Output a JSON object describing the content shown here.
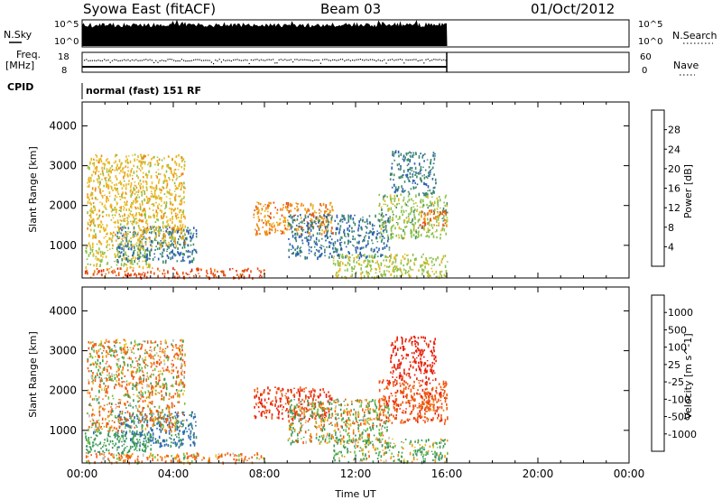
{
  "header": {
    "title": "Syowa East (fitACF)",
    "beam": "Beam 03",
    "date": "01/Oct/2012"
  },
  "left_labels": {
    "nsky": "N.Sky",
    "freq_line1": "Freq.",
    "freq_line2": "[MHz]",
    "cpid": "CPID",
    "nsky_top": "10^5",
    "nsky_bottom": "10^0",
    "freq_top": "18",
    "freq_bottom": "8"
  },
  "right_labels": {
    "nsearch": "N.Search",
    "nave": "Nave",
    "nsearch_top": "10^5",
    "nsearch_bottom": "10^0",
    "nave_top": "60",
    "nave_bottom": "0"
  },
  "cpid_text": "normal (fast) 151 RF",
  "colors": {
    "power": [
      "#1a1aff",
      "#2b5fb0",
      "#3f8a6a",
      "#8cc14a",
      "#e8b820",
      "#f08a10",
      "#e85010",
      "#e02010"
    ],
    "velocity": [
      "#e8200c",
      "#f05a10",
      "#f59010",
      "#e8c020",
      "#c0c0c0",
      "#70c040",
      "#3a9a58",
      "#2e6ab0",
      "#1a2fd0"
    ]
  },
  "chart_data": [
    {
      "type": "heatmap",
      "name": "power-panel",
      "xlabel": "",
      "ylabel": "Slant Range [km]",
      "xlim": [
        0,
        24
      ],
      "ylim": [
        180,
        4600
      ],
      "yticks": [
        "1000",
        "2000",
        "3000",
        "4000"
      ],
      "colorbar_label": "Power [dB]",
      "colorbar_ticks": [
        "4",
        "8",
        "12",
        "16",
        "20",
        "24",
        "28"
      ],
      "clim": [
        0,
        32
      ],
      "regions": [
        {
          "t": [
            0.1,
            8.0
          ],
          "r": [
            200,
            450
          ],
          "v": 26
        },
        {
          "t": [
            0.1,
            3.0
          ],
          "r": [
            450,
            1000
          ],
          "v": 16
        },
        {
          "t": [
            1.5,
            5.0
          ],
          "r": [
            600,
            1500
          ],
          "v": 8
        },
        {
          "t": [
            0.2,
            4.5
          ],
          "r": [
            1000,
            3300
          ],
          "v": 18
        },
        {
          "t": [
            7.5,
            11.0
          ],
          "r": [
            1300,
            2100
          ],
          "v": 22
        },
        {
          "t": [
            9.0,
            13.5
          ],
          "r": [
            700,
            1800
          ],
          "v": 8
        },
        {
          "t": [
            13.0,
            16.0
          ],
          "r": [
            1200,
            2300
          ],
          "v": 14
        },
        {
          "t": [
            14.8,
            16.0
          ],
          "r": [
            1500,
            1900
          ],
          "v": 24
        },
        {
          "t": [
            13.5,
            15.5
          ],
          "r": [
            2300,
            3400
          ],
          "v": 9
        },
        {
          "t": [
            11.0,
            16.0
          ],
          "r": [
            220,
            800
          ],
          "v": 15
        }
      ]
    },
    {
      "type": "heatmap",
      "name": "velocity-panel",
      "xlabel": "Time UT",
      "ylabel": "Slant Range [km]",
      "xlim": [
        0,
        24
      ],
      "ylim": [
        180,
        4600
      ],
      "xticks": [
        "00:00",
        "04:00",
        "08:00",
        "12:00",
        "16:00",
        "20:00",
        "00:00"
      ],
      "yticks": [
        "1000",
        "2000",
        "3000",
        "4000"
      ],
      "colorbar_label": "Velocity [m s^-1]",
      "colorbar_ticks": [
        "1000",
        "500",
        "100",
        "25",
        "-25",
        "-100",
        "-500",
        "-1000"
      ],
      "clim": [
        -1200,
        1200
      ],
      "regions": [
        {
          "t": [
            0.1,
            8.0
          ],
          "r": [
            200,
            450
          ],
          "v": -120
        },
        {
          "t": [
            0.1,
            3.0
          ],
          "r": [
            450,
            1000
          ],
          "v": 300
        },
        {
          "t": [
            1.5,
            5.0
          ],
          "r": [
            600,
            1500
          ],
          "v": 600
        },
        {
          "t": [
            0.2,
            4.5
          ],
          "r": [
            1000,
            3300
          ],
          "v": -60
        },
        {
          "t": [
            7.5,
            11.0
          ],
          "r": [
            1300,
            2100
          ],
          "v": -550
        },
        {
          "t": [
            9.0,
            13.5
          ],
          "r": [
            700,
            1800
          ],
          "v": 40
        },
        {
          "t": [
            13.0,
            16.0
          ],
          "r": [
            1200,
            2300
          ],
          "v": -400
        },
        {
          "t": [
            14.8,
            16.0
          ],
          "r": [
            1500,
            1900
          ],
          "v": -300
        },
        {
          "t": [
            13.5,
            15.5
          ],
          "r": [
            2300,
            3400
          ],
          "v": -700
        },
        {
          "t": [
            11.0,
            16.0
          ],
          "r": [
            220,
            800
          ],
          "v": 120
        }
      ]
    }
  ]
}
